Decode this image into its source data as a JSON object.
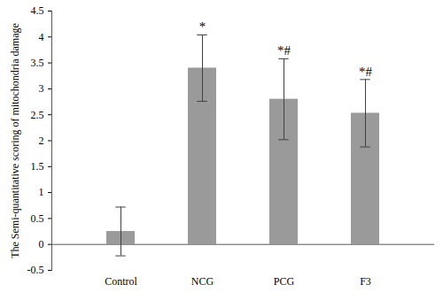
{
  "chart_data": {
    "type": "bar",
    "y_label": "The Semi-quantitative scoring of mitochondria damage",
    "categories": [
      "Control",
      "NCG",
      "PCG",
      "F3"
    ],
    "values": [
      0.25,
      3.4,
      2.8,
      2.53
    ],
    "error": [
      0.47,
      0.64,
      0.78,
      0.65
    ],
    "color": "#9a9a9a",
    "annotations": [
      {
        "category": "NCG",
        "text": "*"
      },
      {
        "category": "PCG",
        "text": "*#"
      },
      {
        "category": "F3",
        "text": "*#"
      }
    ],
    "ylim": [
      -0.5,
      4.5
    ],
    "yticks": [
      -0.5,
      0,
      0.5,
      1,
      1.5,
      2,
      2.5,
      3,
      3.5,
      4,
      4.5
    ],
    "grid": false
  }
}
